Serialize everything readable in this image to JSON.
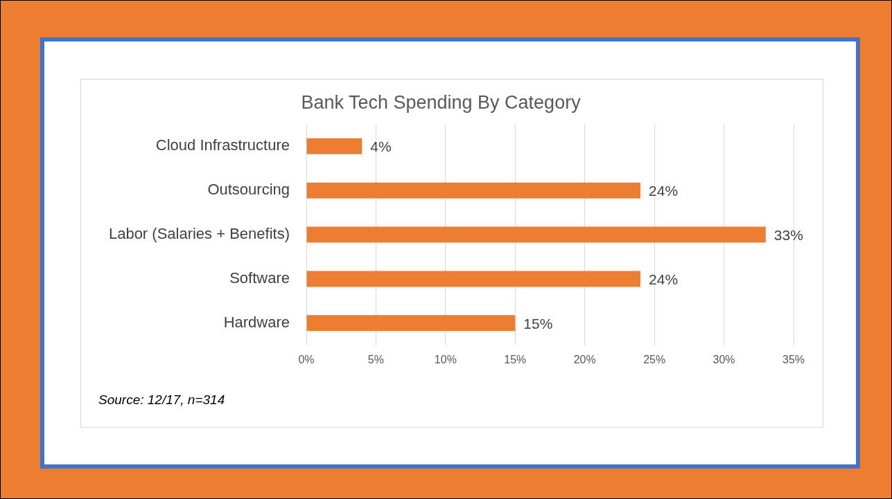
{
  "chart_data": {
    "type": "bar",
    "orientation": "horizontal",
    "title": "Bank Tech Spending By Category",
    "categories": [
      "Cloud Infrastructure",
      "Outsourcing",
      "Labor (Salaries + Benefits)",
      "Software",
      "Hardware"
    ],
    "values": [
      4,
      24,
      33,
      24,
      15
    ],
    "value_labels": [
      "4%",
      "24%",
      "33%",
      "24%",
      "15%"
    ],
    "color": "#ed7d31",
    "xlim": [
      0,
      35
    ],
    "xticks": [
      {
        "value": 0,
        "label": "0%"
      },
      {
        "value": 5,
        "label": "5%"
      },
      {
        "value": 10,
        "label": "10%"
      },
      {
        "value": 15,
        "label": "15%"
      },
      {
        "value": 20,
        "label": "20%"
      },
      {
        "value": 25,
        "label": "25%"
      },
      {
        "value": 30,
        "label": "30%"
      },
      {
        "value": 35,
        "label": "35%"
      }
    ],
    "grid": "x",
    "legend": false,
    "annotations": [
      "Source: 12/17, n=314"
    ]
  }
}
